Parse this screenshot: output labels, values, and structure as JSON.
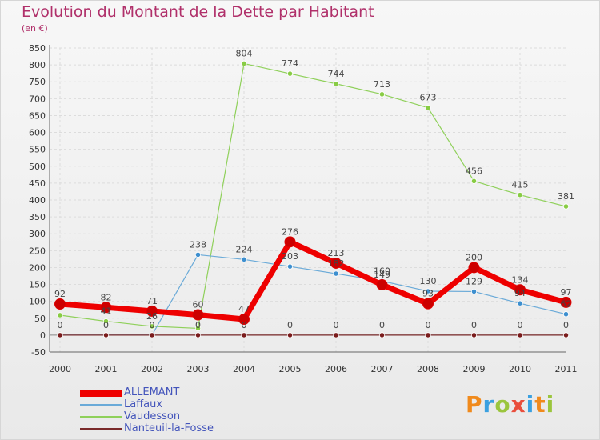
{
  "title": "Evolution du Montant de la Dette par Habitant",
  "subtitle": "(en €)",
  "logo": {
    "text": "Proxiti",
    "colors": [
      "#f08a1c",
      "#3aa0e0",
      "#9bc53d",
      "#e94e3c",
      "#3aa0e0",
      "#f08a1c",
      "#9bc53d"
    ]
  },
  "chart_data": {
    "type": "line",
    "x": [
      "2000",
      "2001",
      "2002",
      "2003",
      "2004",
      "2005",
      "2006",
      "2007",
      "2008",
      "2009",
      "2010",
      "2011"
    ],
    "ylim": [
      -50,
      850
    ],
    "yticks": [
      -50,
      0,
      50,
      100,
      150,
      200,
      250,
      300,
      350,
      400,
      450,
      500,
      550,
      600,
      650,
      700,
      750,
      800,
      850
    ],
    "grid": true,
    "legend": "bottom-left",
    "series": [
      {
        "name": "Vaudesson",
        "color": "#8fd05a",
        "marker_color": "#88cc44",
        "width": 1.2,
        "values": [
          59,
          41,
          26,
          20,
          804,
          774,
          744,
          713,
          673,
          456,
          415,
          381
        ],
        "labels": [
          "",
          "41",
          "26",
          "",
          "804",
          "774",
          "744",
          "713",
          "673",
          "456",
          "415",
          "381"
        ]
      },
      {
        "name": "Laffaux",
        "color": "#6aaad8",
        "marker_color": "#3d8fcf",
        "width": 1.2,
        "values": [
          0,
          0,
          0,
          238,
          224,
          203,
          182,
          160,
          130,
          129,
          94,
          62
        ],
        "labels": [
          "",
          "",
          "",
          "238",
          "224",
          "203",
          "182",
          "160",
          "130",
          "129",
          "94",
          "62"
        ]
      },
      {
        "name": "Nanteuil-la-Fosse",
        "color": "#7a2a2a",
        "marker_color": "#7a1c1c",
        "width": 1.2,
        "values": [
          0,
          0,
          0,
          0,
          0,
          0,
          0,
          0,
          0,
          0,
          0,
          0
        ],
        "labels": [
          "0",
          "0",
          "0",
          "0",
          "0",
          "0",
          "0",
          "0",
          "0",
          "0",
          "0",
          "0"
        ]
      },
      {
        "name": "ALLEMANT",
        "color": "#ee0000",
        "marker_color": "#cc0000",
        "width": 7,
        "values": [
          92,
          82,
          71,
          60,
          47,
          276,
          213,
          149,
          93,
          200,
          134,
          97
        ],
        "labels": [
          "92",
          "82",
          "71",
          "60",
          "47",
          "276",
          "213",
          "149",
          "93",
          "200",
          "134",
          "97"
        ]
      }
    ],
    "legend_order": [
      "ALLEMANT",
      "Laffaux",
      "Vaudesson",
      "Nanteuil-la-Fosse"
    ]
  }
}
